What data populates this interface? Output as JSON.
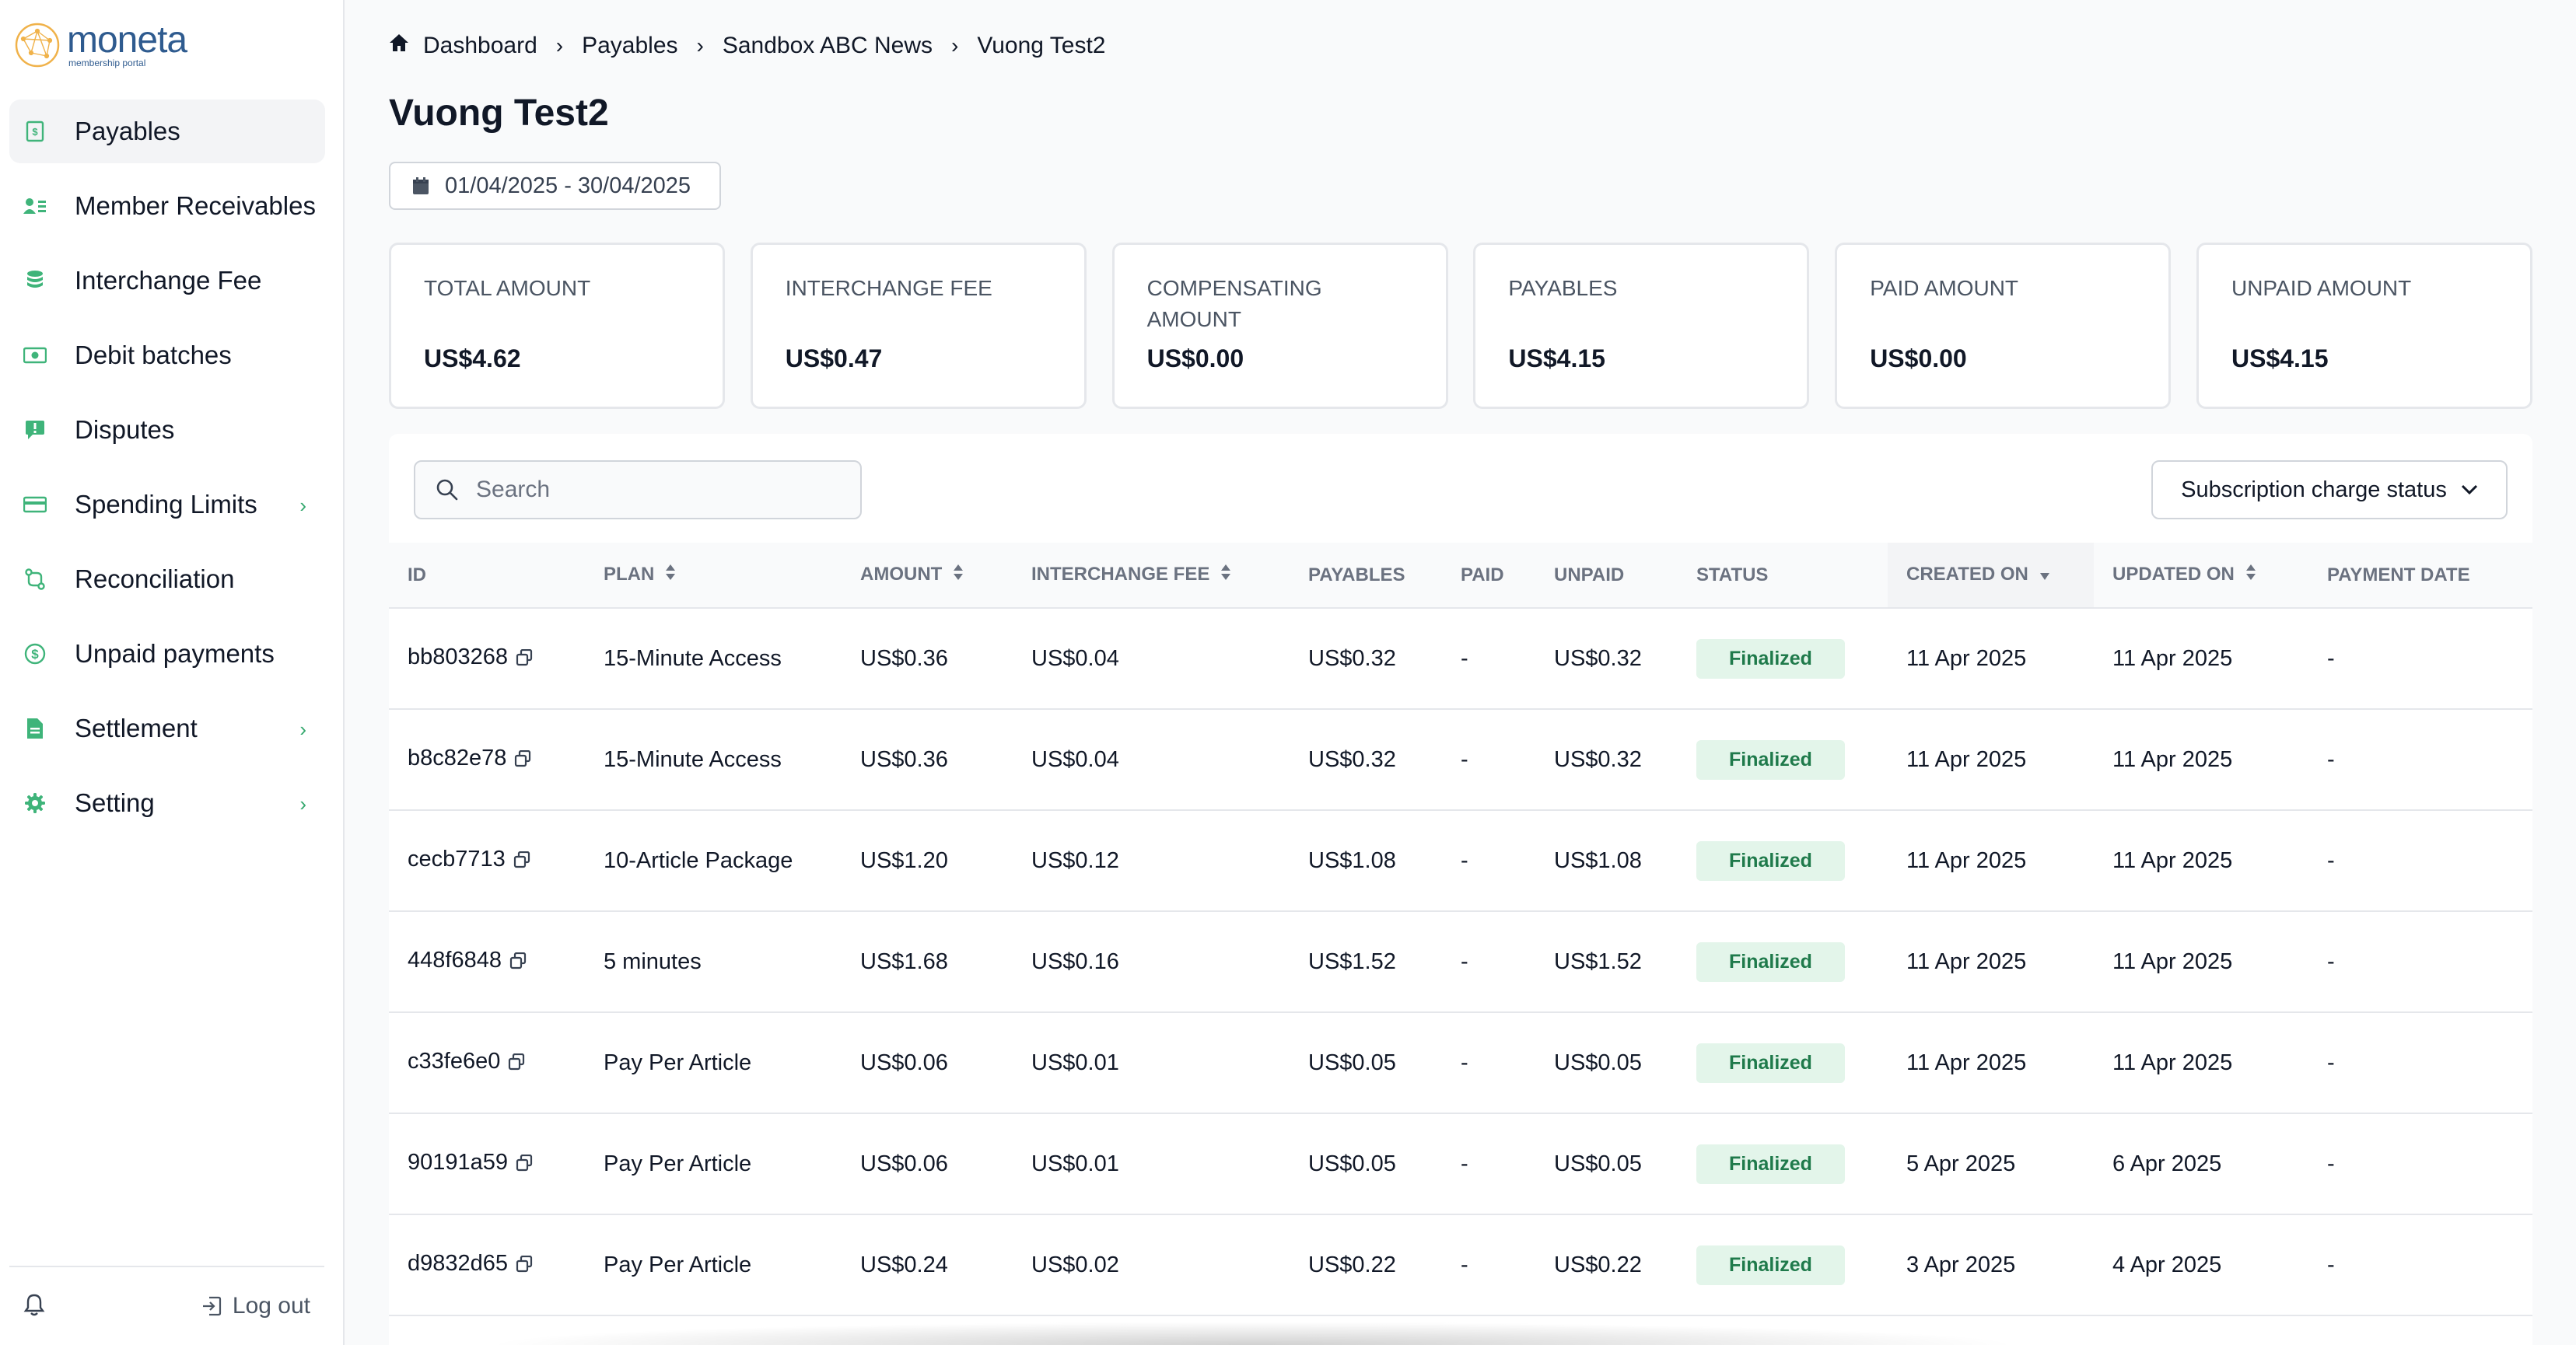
{
  "brand": {
    "name": "moneta",
    "tagline": "membership portal",
    "accent": "#3fb47a",
    "logo_color": "#2f5b8f"
  },
  "sidebar": {
    "items": [
      {
        "label": "Payables",
        "icon": "receipt-icon",
        "active": true,
        "chevron": false
      },
      {
        "label": "Member Receivables",
        "icon": "user-list-icon",
        "active": false,
        "chevron": false
      },
      {
        "label": "Interchange Fee",
        "icon": "coins-stack-icon",
        "active": false,
        "chevron": false
      },
      {
        "label": "Debit batches",
        "icon": "money-icon",
        "active": false,
        "chevron": false
      },
      {
        "label": "Disputes",
        "icon": "alert-message-icon",
        "active": false,
        "chevron": false
      },
      {
        "label": "Spending Limits",
        "icon": "credit-card-icon",
        "active": false,
        "chevron": true
      },
      {
        "label": "Reconciliation",
        "icon": "reconcile-icon",
        "active": false,
        "chevron": false
      },
      {
        "label": "Unpaid payments",
        "icon": "dollar-circle-icon",
        "active": false,
        "chevron": false
      },
      {
        "label": "Settlement",
        "icon": "document-icon",
        "active": false,
        "chevron": true
      },
      {
        "label": "Setting",
        "icon": "gear-icon",
        "active": false,
        "chevron": true
      }
    ],
    "logout_label": "Log out"
  },
  "breadcrumb": [
    "Dashboard",
    "Payables",
    "Sandbox ABC News",
    "Vuong Test2"
  ],
  "page_title": "Vuong Test2",
  "date_range": "01/04/2025 - 30/04/2025",
  "stats": [
    {
      "label": "TOTAL AMOUNT",
      "value": "US$4.62"
    },
    {
      "label": "INTERCHANGE FEE",
      "value": "US$0.47"
    },
    {
      "label": "COMPENSATING AMOUNT",
      "value": "US$0.00"
    },
    {
      "label": "PAYABLES",
      "value": "US$4.15"
    },
    {
      "label": "PAID AMOUNT",
      "value": "US$0.00"
    },
    {
      "label": "UNPAID AMOUNT",
      "value": "US$4.15"
    }
  ],
  "search": {
    "placeholder": "Search",
    "value": ""
  },
  "status_filter": "Subscription charge status",
  "table": {
    "columns": [
      "ID",
      "PLAN",
      "AMOUNT",
      "INTERCHANGE FEE",
      "PAYABLES",
      "PAID",
      "UNPAID",
      "STATUS",
      "CREATED ON",
      "UPDATED ON",
      "PAYMENT DATE"
    ],
    "rows": [
      {
        "id": "bb803268",
        "plan": "15-Minute Access",
        "amount": "US$0.36",
        "fee": "US$0.04",
        "payables": "US$0.32",
        "paid": "-",
        "unpaid": "US$0.32",
        "status": "Finalized",
        "created": "11 Apr 2025",
        "updated": "11 Apr 2025",
        "payment_date": "-"
      },
      {
        "id": "b8c82e78",
        "plan": "15-Minute Access",
        "amount": "US$0.36",
        "fee": "US$0.04",
        "payables": "US$0.32",
        "paid": "-",
        "unpaid": "US$0.32",
        "status": "Finalized",
        "created": "11 Apr 2025",
        "updated": "11 Apr 2025",
        "payment_date": "-"
      },
      {
        "id": "cecb7713",
        "plan": "10-Article Package",
        "amount": "US$1.20",
        "fee": "US$0.12",
        "payables": "US$1.08",
        "paid": "-",
        "unpaid": "US$1.08",
        "status": "Finalized",
        "created": "11 Apr 2025",
        "updated": "11 Apr 2025",
        "payment_date": "-"
      },
      {
        "id": "448f6848",
        "plan": "5 minutes",
        "amount": "US$1.68",
        "fee": "US$0.16",
        "payables": "US$1.52",
        "paid": "-",
        "unpaid": "US$1.52",
        "status": "Finalized",
        "created": "11 Apr 2025",
        "updated": "11 Apr 2025",
        "payment_date": "-"
      },
      {
        "id": "c33fe6e0",
        "plan": "Pay Per Article",
        "amount": "US$0.06",
        "fee": "US$0.01",
        "payables": "US$0.05",
        "paid": "-",
        "unpaid": "US$0.05",
        "status": "Finalized",
        "created": "11 Apr 2025",
        "updated": "11 Apr 2025",
        "payment_date": "-"
      },
      {
        "id": "90191a59",
        "plan": "Pay Per Article",
        "amount": "US$0.06",
        "fee": "US$0.01",
        "payables": "US$0.05",
        "paid": "-",
        "unpaid": "US$0.05",
        "status": "Finalized",
        "created": "5 Apr 2025",
        "updated": "6 Apr 2025",
        "payment_date": "-"
      },
      {
        "id": "d9832d65",
        "plan": "Pay Per Article",
        "amount": "US$0.24",
        "fee": "US$0.02",
        "payables": "US$0.22",
        "paid": "-",
        "unpaid": "US$0.22",
        "status": "Finalized",
        "created": "3 Apr 2025",
        "updated": "4 Apr 2025",
        "payment_date": "-"
      }
    ]
  }
}
